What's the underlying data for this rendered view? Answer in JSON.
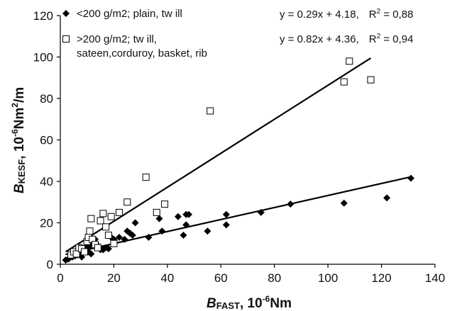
{
  "chart_data": {
    "type": "scatter",
    "xlabel": {
      "main": "B",
      "sub": "FAST",
      "rest": ", 10",
      "sup": "-6",
      "unit": "Nm"
    },
    "ylabel": {
      "main": "B",
      "sub": "KESF",
      "rest": ", 10",
      "sup": "-6",
      "unit": "Nm",
      "sup2": "2",
      "unit2": "/m"
    },
    "xlim": [
      0,
      140
    ],
    "ylim": [
      0,
      120
    ],
    "xticks": [
      0,
      20,
      40,
      60,
      80,
      100,
      120,
      140
    ],
    "yticks": [
      0,
      20,
      40,
      60,
      80,
      100,
      120
    ],
    "grid": false,
    "legend_position": "top-left",
    "series": [
      {
        "name": "<200 g/m2; plain, tw ill",
        "marker": "diamond-filled",
        "color": "#000000",
        "trendline": {
          "slope": 0.29,
          "intercept": 4.18,
          "x_range": [
            2,
            131
          ],
          "equation": "y = 0.29x + 4.18,",
          "r2_label": "R",
          "r2_sup": "2",
          "r2_value": " = 0,88"
        },
        "points": [
          [
            2,
            2
          ],
          [
            3,
            2.5
          ],
          [
            3.5,
            3
          ],
          [
            4,
            4
          ],
          [
            4.5,
            3.5
          ],
          [
            5,
            5
          ],
          [
            5.5,
            4
          ],
          [
            6,
            5.5
          ],
          [
            6.5,
            4.5
          ],
          [
            7,
            6
          ],
          [
            7.5,
            5
          ],
          [
            8,
            3.5
          ],
          [
            8.5,
            7
          ],
          [
            9,
            6.5
          ],
          [
            9.5,
            8
          ],
          [
            10,
            7
          ],
          [
            10.5,
            6
          ],
          [
            11,
            9
          ],
          [
            11.5,
            5
          ],
          [
            12,
            11
          ],
          [
            12.5,
            10
          ],
          [
            13,
            12
          ],
          [
            13.5,
            8
          ],
          [
            14,
            9
          ],
          [
            15,
            7
          ],
          [
            16,
            7
          ],
          [
            17,
            8
          ],
          [
            18,
            7.5
          ],
          [
            19,
            13
          ],
          [
            20,
            12
          ],
          [
            22,
            13
          ],
          [
            24,
            12
          ],
          [
            25,
            16
          ],
          [
            26,
            15
          ],
          [
            27,
            14
          ],
          [
            28,
            20
          ],
          [
            33,
            13
          ],
          [
            37,
            22
          ],
          [
            38,
            16
          ],
          [
            44,
            23
          ],
          [
            46,
            14
          ],
          [
            47,
            19
          ],
          [
            47,
            24
          ],
          [
            48,
            24
          ],
          [
            55,
            16
          ],
          [
            62,
            19
          ],
          [
            62,
            24
          ],
          [
            75,
            25
          ],
          [
            86,
            29
          ],
          [
            106,
            29.5
          ],
          [
            122,
            32
          ],
          [
            131,
            41.5
          ]
        ]
      },
      {
        "name": ">200 g/m2; tw ill,",
        "name_line2": "sateen,corduroy, basket, rib",
        "marker": "square-open",
        "color": "#000000",
        "trendline": {
          "slope": 0.82,
          "intercept": 4.36,
          "x_range": [
            2,
            116
          ],
          "equation": "y = 0.82x + 4.36,",
          "r2_label": "R",
          "r2_sup": "2",
          "r2_value": " = 0,94"
        },
        "points": [
          [
            4,
            4.5
          ],
          [
            5,
            6
          ],
          [
            6,
            5
          ],
          [
            7,
            8
          ],
          [
            8,
            7.5
          ],
          [
            9,
            6
          ],
          [
            10,
            11
          ],
          [
            10.5,
            13
          ],
          [
            11,
            16
          ],
          [
            11.5,
            22
          ],
          [
            12,
            12
          ],
          [
            13,
            9.5
          ],
          [
            14,
            8
          ],
          [
            15,
            21
          ],
          [
            16,
            24.5
          ],
          [
            17,
            18
          ],
          [
            18,
            14
          ],
          [
            19,
            23
          ],
          [
            20,
            10
          ],
          [
            22,
            25
          ],
          [
            25,
            30
          ],
          [
            32,
            42
          ],
          [
            36,
            25
          ],
          [
            39,
            29
          ],
          [
            56,
            74
          ],
          [
            106,
            88
          ],
          [
            108,
            98
          ],
          [
            116,
            89
          ]
        ]
      }
    ]
  }
}
